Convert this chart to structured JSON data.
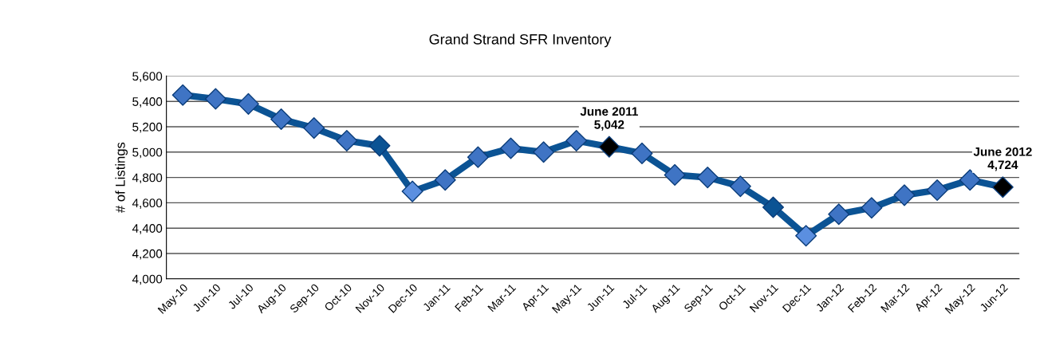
{
  "chart_data": {
    "type": "line",
    "title": "Grand Strand SFR Inventory",
    "ylabel": "# of Listings",
    "categories": [
      "May-10",
      "Jun-10",
      "Jul-10",
      "Aug-10",
      "Sep-10",
      "Oct-10",
      "Nov-10",
      "Dec-10",
      "Jan-11",
      "Feb-11",
      "Mar-11",
      "Apr-11",
      "May-11",
      "Jun-11",
      "Jul-11",
      "Aug-11",
      "Sep-11",
      "Oct-11",
      "Nov-11",
      "Dec-11",
      "Jan-12",
      "Feb-12",
      "Mar-12",
      "Apr-12",
      "May-12",
      "Jun-12"
    ],
    "series": [
      {
        "color": "#0b5394",
        "colors": [
          "#3f74c4",
          "#3f74c4",
          "#3f74c4",
          "#3f74c4",
          "#3f74c4",
          "#3f74c4",
          "#0b5394",
          "#5b8fe0",
          "#3f74c4",
          "#3f74c4",
          "#3f74c4",
          "#3f74c4",
          "#3f74c4",
          "#000000",
          "#3f74c4",
          "#3f74c4",
          "#3f74c4",
          "#3f74c4",
          "#0b5394",
          "#5b8fe0",
          "#3f74c4",
          "#3f74c4",
          "#3f74c4",
          "#3f74c4",
          "#3f74c4",
          "#000000"
        ],
        "values": [
          5450,
          5420,
          5380,
          5260,
          5190,
          5090,
          5050,
          4690,
          4780,
          4960,
          5030,
          5000,
          5090,
          5042,
          4990,
          4820,
          4800,
          4730,
          4565,
          4340,
          4510,
          4560,
          4660,
          4700,
          4780,
          4724
        ]
      }
    ],
    "annotations": [
      {
        "text": "June 2011\n5,042",
        "x": "Jun-11",
        "y": 5042
      },
      {
        "text": "June 2012\n4,724",
        "x": "Jun-12",
        "y": 4724
      }
    ],
    "ylim": [
      4000,
      5600
    ],
    "yticks": [
      {
        "value": 4000,
        "label": "4,000"
      },
      {
        "value": 4200,
        "label": "4,200"
      },
      {
        "value": 4400,
        "label": "4,400"
      },
      {
        "value": 4600,
        "label": "4,600"
      },
      {
        "value": 4800,
        "label": "4,800"
      },
      {
        "value": 5000,
        "label": "5,000"
      },
      {
        "value": 5200,
        "label": "5,200"
      },
      {
        "value": 5400,
        "label": "5,400"
      },
      {
        "value": 5600,
        "label": "5,600"
      }
    ],
    "grid": "y",
    "marker": "diamond",
    "line_style": "solid"
  }
}
